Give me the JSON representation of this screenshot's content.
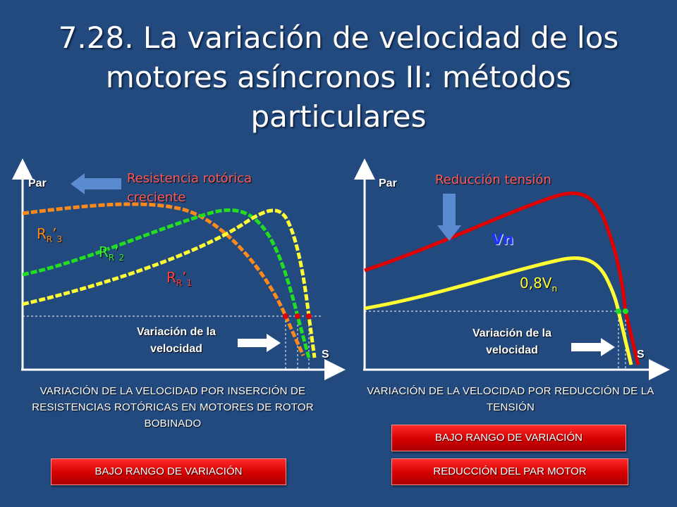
{
  "slide": {
    "title": "7.28. La variación de velocidad de los motores asíncronos II: métodos particulares"
  },
  "left_panel": {
    "y_axis_label": "Par",
    "x_axis_label": "S",
    "arrow_label": "Resistencia rotórica creciente",
    "speed_variation_label": "Variación de la velocidad",
    "curves": [
      {
        "main": "R",
        "sub1": "R",
        "prime": "’",
        "sub2": "3",
        "color": "#ff8a1a"
      },
      {
        "main": "R",
        "sub1": "R",
        "prime": "’",
        "sub2": "2",
        "color": "#33ee33"
      },
      {
        "main": "R",
        "sub1": "R",
        "prime": "’",
        "sub2": "1",
        "color": "#ff4040"
      }
    ],
    "caption": "VARIACIÓN DE LA VELOCIDAD POR INSERCIÓN DE RESISTENCIAS ROTÓRICAS EN MOTORES DE ROTOR BOBINADO",
    "badge": "BAJO RANGO DE VARIACIÓN"
  },
  "right_panel": {
    "y_axis_label": "Par",
    "x_axis_label": "S",
    "arrow_label": "Reducción tensión",
    "speed_variation_label": "Variación de la velocidad",
    "curve_vn": "Vn",
    "curve_08_main": "0,8V",
    "curve_08_sub": "n",
    "caption": "VARIACIÓN DE LA VELOCIDAD POR REDUCCIÓN DE LA TENSIÓN",
    "badge_1": "BAJO RANGO DE VARIACIÓN",
    "badge_2": "REDUCCIÓN DEL PAR MOTOR"
  },
  "colors": {
    "background": "#234a7e",
    "curve_orange": "#ff8a1a",
    "curve_green": "#22dd22",
    "curve_yellow": "#ffff33",
    "curve_red": "#e00000",
    "arrow_blue": "#5a8ad0",
    "badge_red": "#d40000"
  }
}
